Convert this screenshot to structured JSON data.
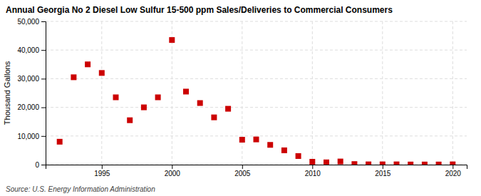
{
  "chart_data": {
    "type": "scatter",
    "title": "Annual Georgia No 2 Diesel Low Sulfur 15-500 ppm Sales/Deliveries to Commercial Consumers",
    "ylabel": "Thousand Gallons",
    "annotations": [
      "Source: U.S. Energy Information Administration"
    ],
    "x": [
      1992,
      1993,
      1994,
      1995,
      1996,
      1997,
      1998,
      1999,
      2000,
      2001,
      2002,
      2003,
      2004,
      2005,
      2006,
      2007,
      2008,
      2009,
      2010,
      2011,
      2012,
      2013,
      2014,
      2015,
      2016,
      2017,
      2018,
      2019,
      2020
    ],
    "values": [
      8000,
      30500,
      35000,
      32000,
      23500,
      15500,
      20000,
      23500,
      43500,
      25500,
      21500,
      16500,
      19500,
      8700,
      8800,
      6900,
      5000,
      3000,
      1000,
      800,
      1100,
      200,
      100,
      100,
      100,
      50,
      50,
      50,
      100
    ],
    "color": "#cc0000",
    "marker": "square",
    "xlim": [
      1991,
      2021
    ],
    "xticks": [
      1995,
      2000,
      2005,
      2010,
      2015,
      2020
    ],
    "ylim": [
      0,
      50000
    ],
    "yticks": [
      0,
      {
        "value": 10000,
        "label": "10,000"
      },
      {
        "value": 20000,
        "label": "20,000"
      },
      {
        "value": 30000,
        "label": "30,000"
      },
      {
        "value": 40000,
        "label": "40,000"
      },
      {
        "value": 50000,
        "label": "50,000"
      }
    ],
    "grid": true
  }
}
